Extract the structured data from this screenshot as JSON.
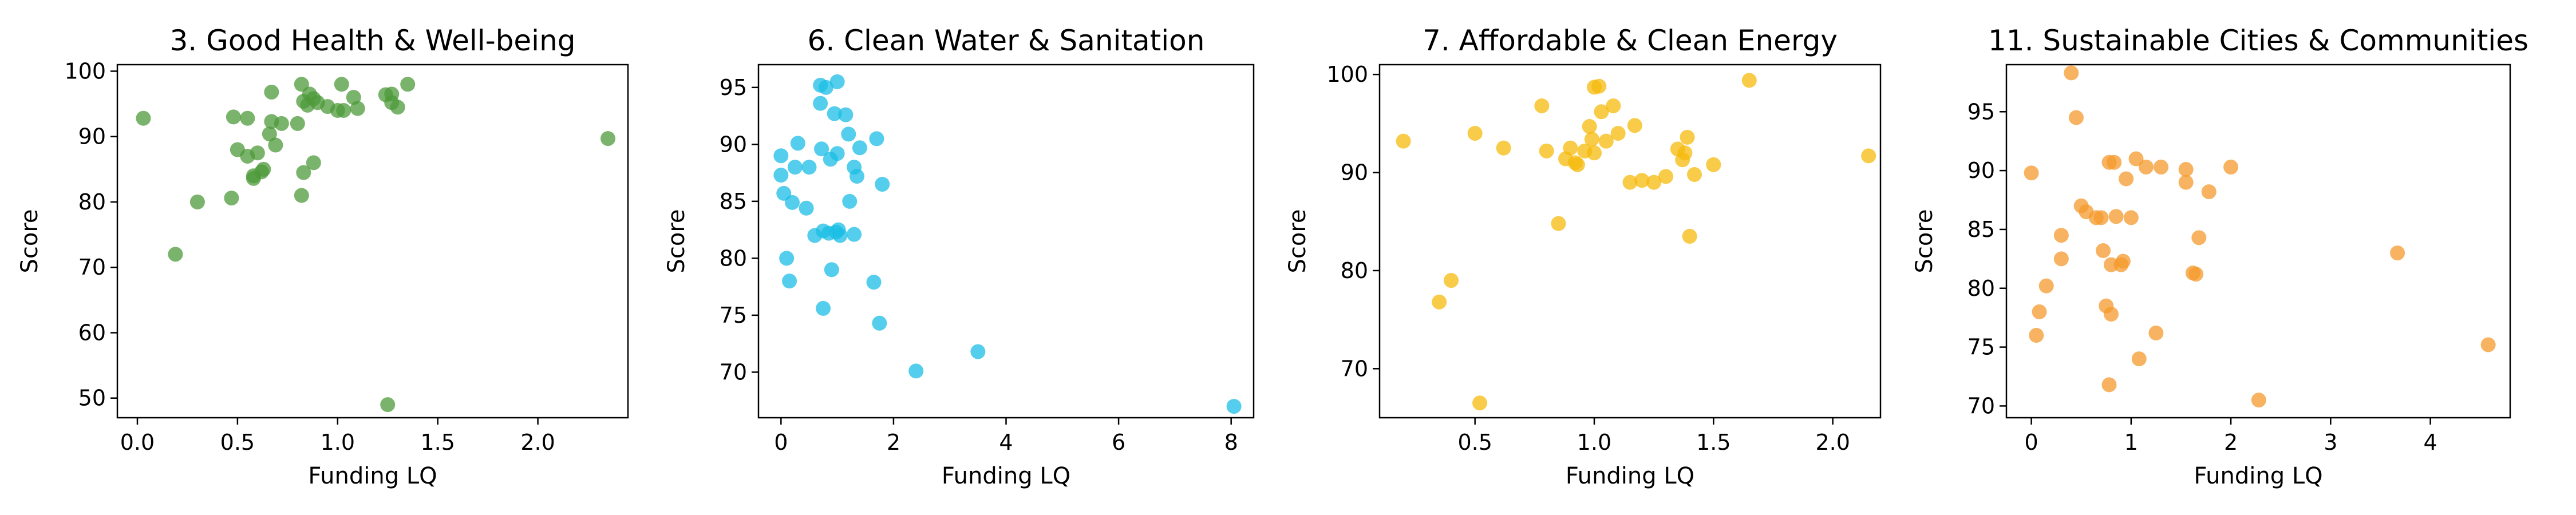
{
  "chart_data": [
    {
      "type": "scatter",
      "title": "3. Good Health & Well-being",
      "xlabel": "Funding LQ",
      "ylabel": "Score",
      "color": "#4e9a3a",
      "xlim": [
        -0.1,
        2.45
      ],
      "ylim": [
        47,
        101
      ],
      "xticks": [
        0.0,
        0.5,
        1.0,
        1.5,
        2.0
      ],
      "xtick_labels": [
        "0.0",
        "0.5",
        "1.0",
        "1.5",
        "2.0"
      ],
      "yticks": [
        50,
        60,
        70,
        80,
        90,
        100
      ],
      "ytick_labels": [
        "50",
        "60",
        "70",
        "80",
        "90",
        "100"
      ],
      "x": [
        0.03,
        0.19,
        0.3,
        0.47,
        0.48,
        0.5,
        0.55,
        0.55,
        0.58,
        0.58,
        0.6,
        0.62,
        0.63,
        0.66,
        0.67,
        0.67,
        0.69,
        0.72,
        0.8,
        0.82,
        0.82,
        0.83,
        0.83,
        0.85,
        0.86,
        0.88,
        0.88,
        0.9,
        0.95,
        1.0,
        1.02,
        1.03,
        1.08,
        1.1,
        1.24,
        1.25,
        1.27,
        1.27,
        1.3,
        1.35,
        2.35
      ],
      "y": [
        92.8,
        72.0,
        80.0,
        80.6,
        93.0,
        88.0,
        87.0,
        92.8,
        83.6,
        84.0,
        87.5,
        84.6,
        85.0,
        90.4,
        96.8,
        92.3,
        88.7,
        92.0,
        92.0,
        98.0,
        81.0,
        95.4,
        84.5,
        94.8,
        96.5,
        86.0,
        95.8,
        95.2,
        94.6,
        94.0,
        98.0,
        94.0,
        96.0,
        94.3,
        96.4,
        49.0,
        96.5,
        95.2,
        94.5,
        98.0,
        89.7
      ]
    },
    {
      "type": "scatter",
      "title": "6. Clean Water & Sanitation",
      "xlabel": "Funding LQ",
      "ylabel": "Score",
      "color": "#1bbde6",
      "xlim": [
        -0.4,
        8.4
      ],
      "ylim": [
        66,
        97
      ],
      "xticks": [
        0,
        2,
        4,
        6,
        8
      ],
      "xtick_labels": [
        "0",
        "2",
        "4",
        "6",
        "8"
      ],
      "yticks": [
        70,
        75,
        80,
        85,
        90,
        95
      ],
      "ytick_labels": [
        "70",
        "75",
        "80",
        "85",
        "90",
        "95"
      ],
      "x": [
        0.0,
        0.0,
        0.05,
        0.1,
        0.15,
        0.2,
        0.25,
        0.3,
        0.45,
        0.5,
        0.6,
        0.7,
        0.7,
        0.72,
        0.75,
        0.75,
        0.8,
        0.85,
        0.88,
        0.9,
        0.95,
        0.98,
        1.0,
        1.0,
        1.02,
        1.05,
        1.15,
        1.2,
        1.22,
        1.3,
        1.3,
        1.35,
        1.4,
        1.65,
        1.7,
        1.75,
        1.8,
        2.4,
        3.5,
        8.05
      ],
      "y": [
        89.0,
        87.3,
        85.7,
        80.0,
        78.0,
        84.9,
        88.0,
        90.1,
        84.4,
        88.0,
        82.0,
        95.2,
        93.6,
        89.6,
        82.4,
        75.6,
        95.0,
        82.2,
        88.7,
        79.0,
        92.7,
        82.3,
        95.5,
        89.2,
        82.5,
        82.0,
        92.6,
        90.9,
        85.0,
        88.0,
        82.1,
        87.2,
        89.7,
        77.9,
        90.5,
        74.3,
        86.5,
        70.1,
        71.8,
        67.0
      ]
    },
    {
      "type": "scatter",
      "title": "7. Affordable & Clean Energy",
      "xlabel": "Funding LQ",
      "ylabel": "Score",
      "color": "#f5b90b",
      "xlim": [
        0.1,
        2.2
      ],
      "ylim": [
        65,
        101
      ],
      "xticks": [
        0.5,
        1.0,
        1.5,
        2.0
      ],
      "xtick_labels": [
        "0.5",
        "1.0",
        "1.5",
        "2.0"
      ],
      "yticks": [
        70,
        80,
        90,
        100
      ],
      "ytick_labels": [
        "70",
        "80",
        "90",
        "100"
      ],
      "x": [
        0.2,
        0.35,
        0.4,
        0.5,
        0.52,
        0.62,
        0.78,
        0.8,
        0.85,
        0.88,
        0.9,
        0.92,
        0.93,
        0.96,
        0.98,
        0.99,
        1.0,
        1.0,
        1.02,
        1.03,
        1.05,
        1.08,
        1.1,
        1.15,
        1.17,
        1.2,
        1.25,
        1.3,
        1.35,
        1.37,
        1.38,
        1.39,
        1.4,
        1.42,
        1.5,
        1.65,
        2.15
      ],
      "y": [
        93.2,
        76.8,
        79.0,
        94.0,
        66.5,
        92.5,
        96.8,
        92.2,
        84.8,
        91.4,
        92.5,
        91.0,
        90.8,
        92.2,
        94.7,
        93.4,
        98.7,
        92.0,
        98.8,
        96.2,
        93.2,
        96.8,
        94.0,
        89.0,
        94.8,
        89.2,
        89.0,
        89.6,
        92.4,
        91.3,
        92.0,
        93.6,
        83.5,
        89.8,
        90.8,
        99.4,
        91.7
      ]
    },
    {
      "type": "scatter",
      "title": "11.  Sustainable Cities & Communities",
      "xlabel": "Funding LQ",
      "ylabel": "Score",
      "color": "#f49a2c",
      "xlim": [
        -0.25,
        4.8
      ],
      "ylim": [
        69,
        99
      ],
      "xticks": [
        0,
        1,
        2,
        3,
        4
      ],
      "xtick_labels": [
        "0",
        "1",
        "2",
        "3",
        "4"
      ],
      "yticks": [
        70,
        75,
        80,
        85,
        90,
        95
      ],
      "ytick_labels": [
        "70",
        "75",
        "80",
        "85",
        "90",
        "95"
      ],
      "x": [
        0.0,
        0.05,
        0.08,
        0.15,
        0.3,
        0.3,
        0.4,
        0.45,
        0.5,
        0.55,
        0.65,
        0.7,
        0.72,
        0.75,
        0.78,
        0.78,
        0.8,
        0.8,
        0.83,
        0.85,
        0.9,
        0.92,
        0.95,
        1.0,
        1.05,
        1.08,
        1.15,
        1.25,
        1.3,
        1.55,
        1.55,
        1.62,
        1.65,
        1.68,
        1.78,
        2.0,
        2.28,
        3.67,
        4.58
      ],
      "y": [
        89.8,
        76.0,
        78.0,
        80.2,
        82.5,
        84.5,
        98.3,
        94.5,
        87.0,
        86.5,
        86.0,
        86.0,
        83.2,
        78.5,
        90.7,
        71.8,
        77.8,
        82.0,
        90.7,
        86.1,
        82.0,
        82.3,
        89.3,
        86.0,
        91.0,
        74.0,
        90.3,
        76.2,
        90.3,
        90.1,
        89.0,
        81.3,
        81.2,
        84.3,
        88.2,
        90.3,
        70.5,
        83.0,
        75.2
      ]
    }
  ]
}
